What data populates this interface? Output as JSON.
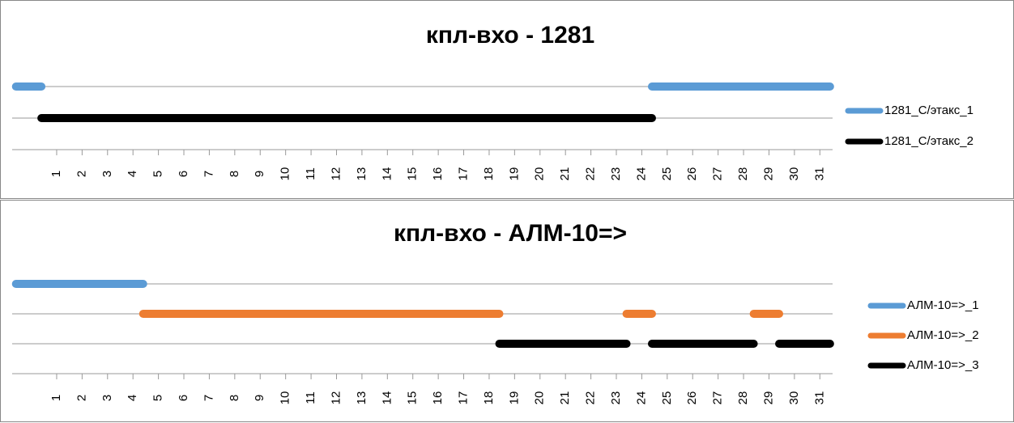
{
  "chart_data": [
    {
      "type": "timeline",
      "title": "кпл-вхо - 1281",
      "series": [
        {
          "name": "1281_С/этакс_1",
          "color": "#5b9bd5",
          "segments": [
            [
              -0.6,
              0.4
            ],
            [
              24.4,
              31.4
            ]
          ]
        },
        {
          "name": "1281_С/этакс_2",
          "color": "#000000",
          "segments": [
            [
              0.4,
              24.4
            ]
          ]
        }
      ],
      "xlim": [
        -0.75,
        31.5
      ],
      "xticks": [
        1,
        2,
        3,
        4,
        5,
        6,
        7,
        8,
        9,
        10,
        11,
        12,
        13,
        14,
        15,
        16,
        17,
        18,
        19,
        20,
        21,
        22,
        23,
        24,
        25,
        26,
        27,
        28,
        29,
        30,
        31
      ]
    },
    {
      "type": "timeline",
      "title": "кпл-вхо - АЛМ-10=>",
      "series": [
        {
          "name": "АЛМ-10=>_1",
          "color": "#5b9bd5",
          "segments": [
            [
              -0.6,
              4.4
            ]
          ]
        },
        {
          "name": "АЛМ-10=>_2",
          "color": "#ed7d31",
          "segments": [
            [
              4.4,
              18.4
            ],
            [
              23.4,
              24.4
            ],
            [
              28.4,
              29.4
            ]
          ]
        },
        {
          "name": "АЛМ-10=>_3",
          "color": "#000000",
          "segments": [
            [
              18.4,
              23.4
            ],
            [
              24.4,
              28.4
            ],
            [
              29.4,
              31.4
            ]
          ]
        }
      ],
      "xlim": [
        -0.75,
        31.5
      ],
      "xticks": [
        1,
        2,
        3,
        4,
        5,
        6,
        7,
        8,
        9,
        10,
        11,
        12,
        13,
        14,
        15,
        16,
        17,
        18,
        19,
        20,
        21,
        22,
        23,
        24,
        25,
        26,
        27,
        28,
        29,
        30,
        31
      ]
    }
  ]
}
